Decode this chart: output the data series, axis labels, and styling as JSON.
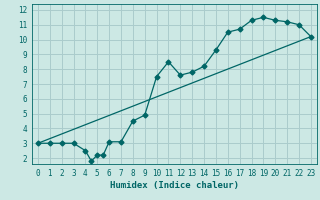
{
  "xlabel": "Humidex (Indice chaleur)",
  "bg_color": "#cce8e4",
  "line_color": "#006666",
  "grid_color": "#aacccc",
  "xlim": [
    -0.5,
    23.5
  ],
  "ylim": [
    1.6,
    12.4
  ],
  "xticks": [
    0,
    1,
    2,
    3,
    4,
    5,
    6,
    7,
    8,
    9,
    10,
    11,
    12,
    13,
    14,
    15,
    16,
    17,
    18,
    19,
    20,
    21,
    22,
    23
  ],
  "yticks": [
    2,
    3,
    4,
    5,
    6,
    7,
    8,
    9,
    10,
    11,
    12
  ],
  "curve1_x": [
    0,
    1,
    2,
    3,
    4,
    4.5,
    5,
    5.5,
    6,
    7,
    8,
    9,
    10,
    11,
    12,
    13,
    14,
    15,
    16,
    17,
    18,
    19,
    20,
    21,
    22,
    23
  ],
  "curve1_y": [
    3.0,
    3.0,
    3.0,
    3.0,
    2.5,
    1.8,
    2.2,
    2.2,
    3.1,
    3.1,
    4.5,
    4.9,
    7.5,
    8.5,
    7.6,
    7.8,
    8.2,
    9.3,
    10.5,
    10.7,
    11.3,
    11.5,
    11.3,
    11.2,
    11.0,
    10.2
  ],
  "line_x": [
    0,
    23
  ],
  "line_y": [
    3.0,
    10.2
  ]
}
